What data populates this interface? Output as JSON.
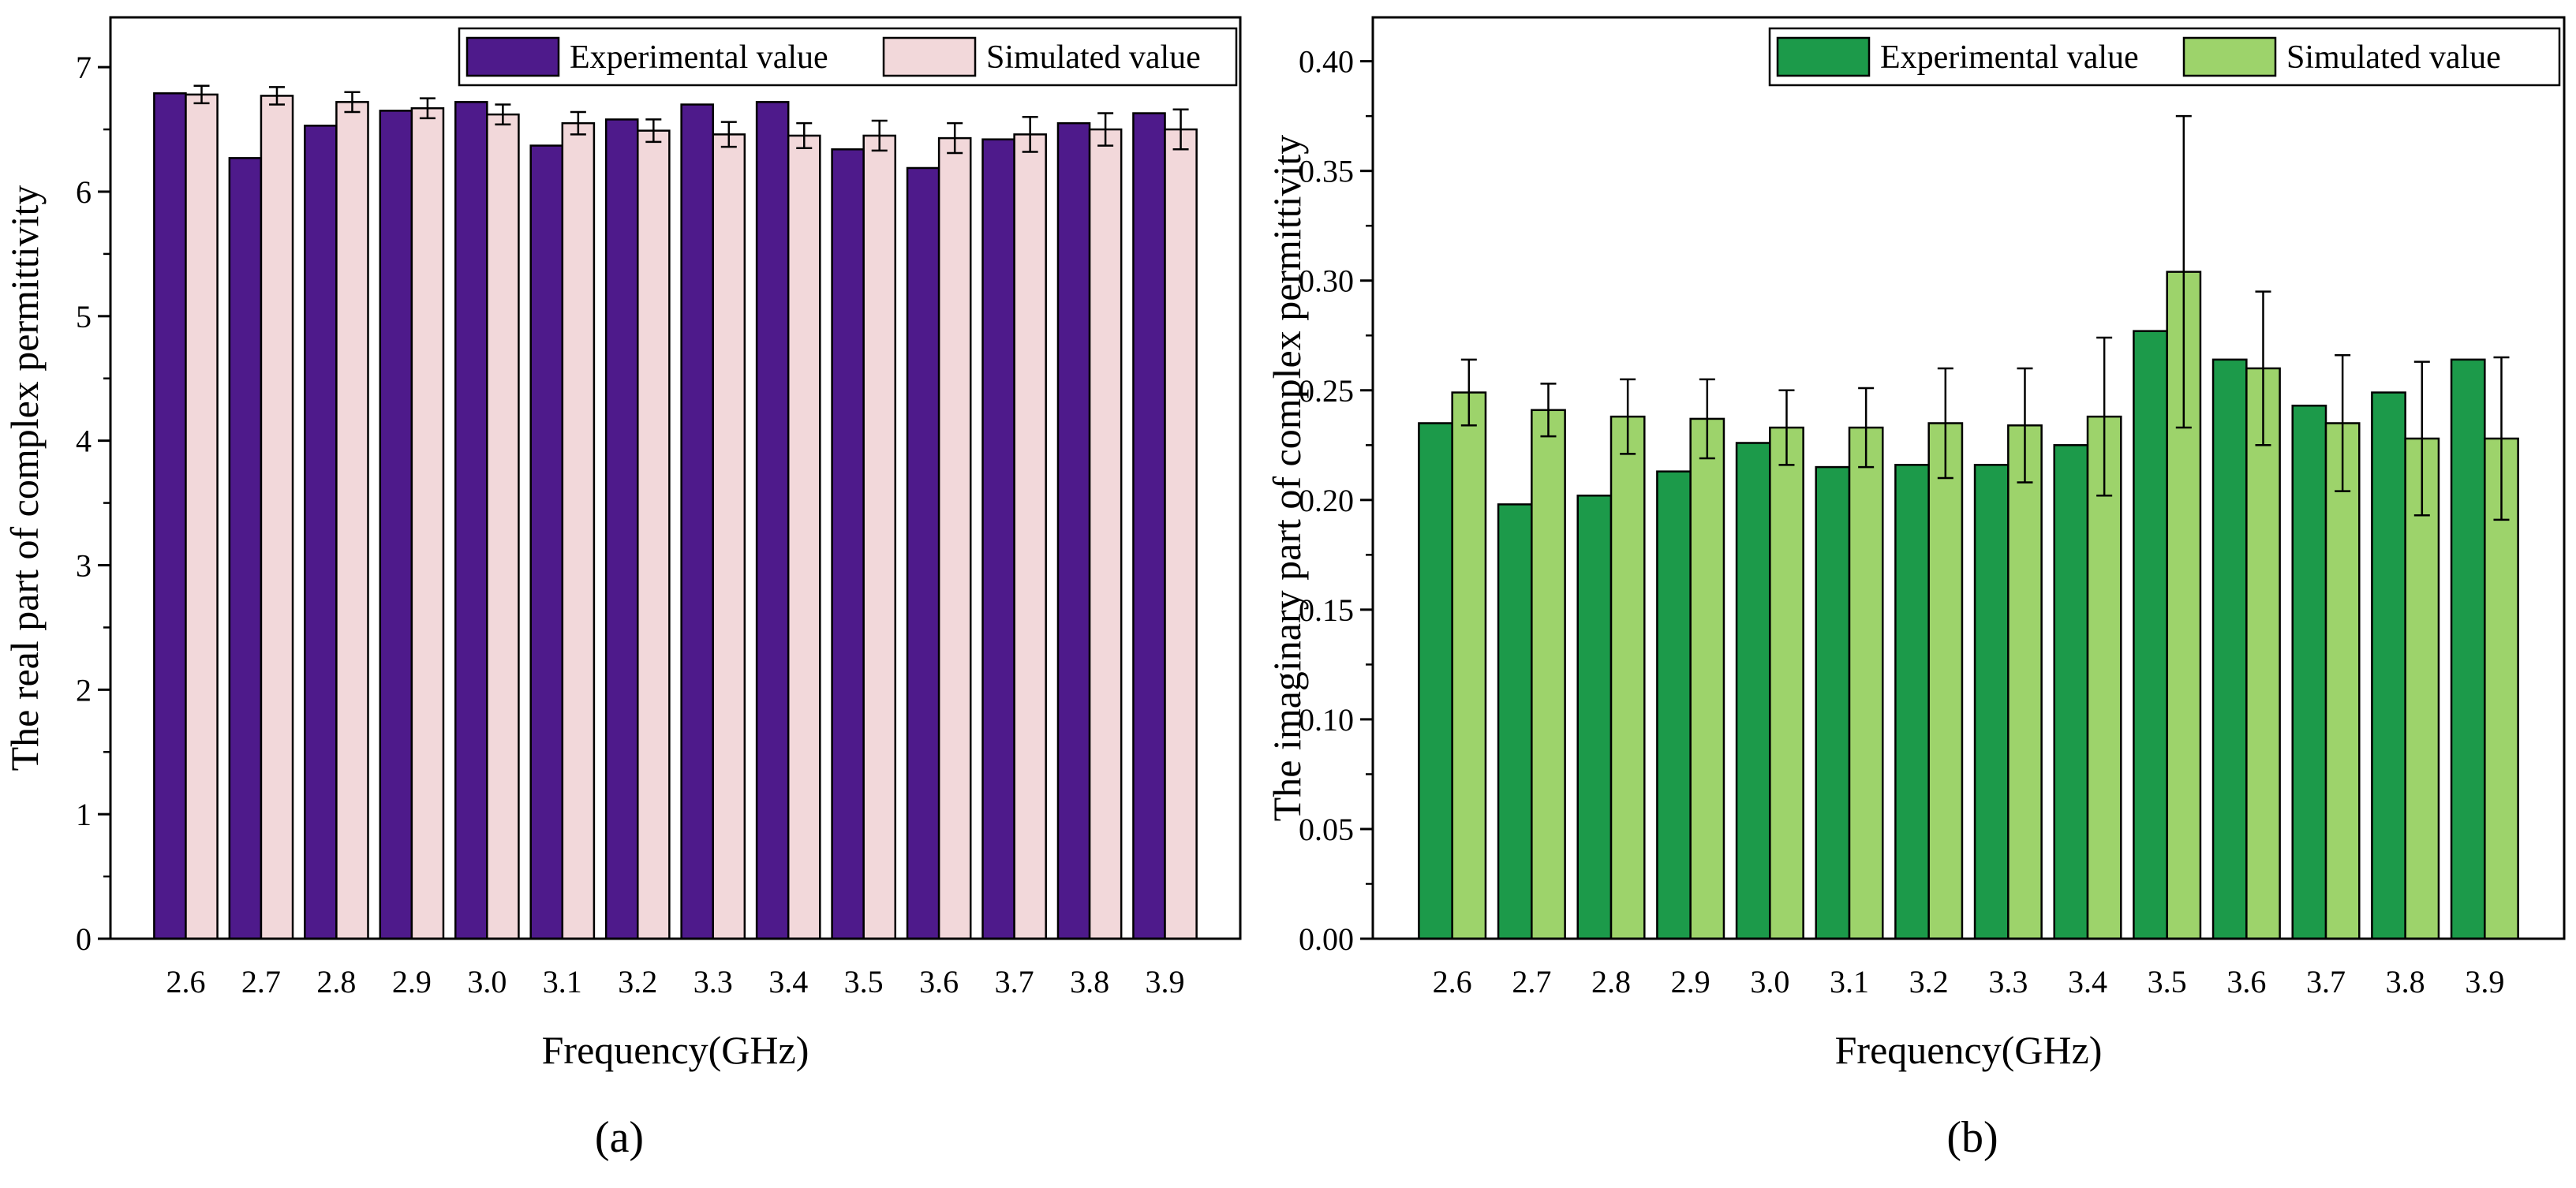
{
  "chart_data": [
    {
      "type": "bar",
      "panel_label": "(a)",
      "xlabel": "Frequency(GHz)",
      "ylabel": "The real part of complex permittivity",
      "categories": [
        "2.6",
        "2.7",
        "2.8",
        "2.9",
        "3.0",
        "3.1",
        "3.2",
        "3.3",
        "3.4",
        "3.5",
        "3.6",
        "3.7",
        "3.8",
        "3.9"
      ],
      "ylim": [
        0,
        7.4
      ],
      "yticks": [
        0,
        1,
        2,
        3,
        4,
        5,
        6,
        7
      ],
      "ytick_labels": [
        "0",
        "1",
        "2",
        "3",
        "4",
        "5",
        "6",
        "7"
      ],
      "yminor": 0.5,
      "grid": false,
      "legend_position": "top-right",
      "series": [
        {
          "name": "Experimental value",
          "color": "#4e1a8b",
          "values": [
            6.79,
            6.27,
            6.53,
            6.65,
            6.72,
            6.37,
            6.58,
            6.7,
            6.72,
            6.34,
            6.19,
            6.42,
            6.55,
            6.63
          ],
          "errors": null
        },
        {
          "name": "Simulated value",
          "color": "#f2d8da",
          "values": [
            6.78,
            6.77,
            6.72,
            6.67,
            6.62,
            6.55,
            6.49,
            6.46,
            6.45,
            6.45,
            6.43,
            6.46,
            6.5,
            6.5
          ],
          "errors": [
            0.07,
            0.07,
            0.08,
            0.08,
            0.08,
            0.09,
            0.09,
            0.1,
            0.1,
            0.12,
            0.12,
            0.14,
            0.13,
            0.16
          ]
        }
      ]
    },
    {
      "type": "bar",
      "panel_label": "(b)",
      "xlabel": "Frequency(GHz)",
      "ylabel": "The imaginary part of complex permittivity",
      "categories": [
        "2.6",
        "2.7",
        "2.8",
        "2.9",
        "3.0",
        "3.1",
        "3.2",
        "3.3",
        "3.4",
        "3.5",
        "3.6",
        "3.7",
        "3.8",
        "3.9"
      ],
      "ylim": [
        0,
        0.42
      ],
      "yticks": [
        0,
        0.05,
        0.1,
        0.15,
        0.2,
        0.25,
        0.3,
        0.35,
        0.4
      ],
      "ytick_labels": [
        "0.00",
        "0.05",
        "0.10",
        "0.15",
        "0.20",
        "0.25",
        "0.30",
        "0.35",
        "0.40"
      ],
      "yminor": 0.025,
      "grid": false,
      "legend_position": "top-right",
      "series": [
        {
          "name": "Experimental value",
          "color": "#1c9a4a",
          "values": [
            0.235,
            0.198,
            0.202,
            0.213,
            0.226,
            0.215,
            0.216,
            0.216,
            0.225,
            0.277,
            0.264,
            0.243,
            0.249,
            0.264
          ],
          "errors": null
        },
        {
          "name": "Simulated value",
          "color": "#9dd36b",
          "values": [
            0.249,
            0.241,
            0.238,
            0.237,
            0.233,
            0.233,
            0.235,
            0.234,
            0.238,
            0.304,
            0.26,
            0.235,
            0.228,
            0.228
          ],
          "errors": [
            0.015,
            0.012,
            0.017,
            0.018,
            0.017,
            0.018,
            0.025,
            0.026,
            0.036,
            0.071,
            0.035,
            0.031,
            0.035,
            0.037
          ]
        }
      ]
    }
  ]
}
